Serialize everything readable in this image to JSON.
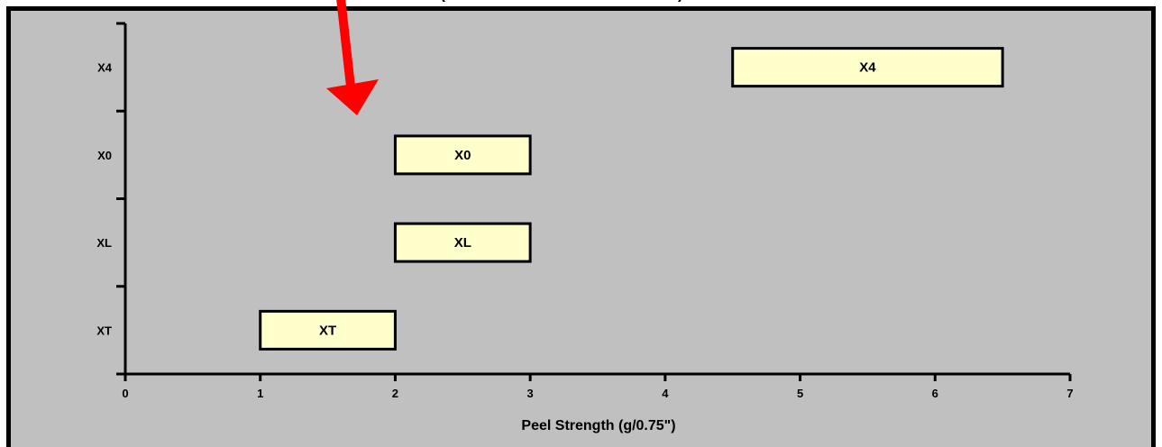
{
  "chart_data": {
    "type": "bar",
    "subtype": "floating-range-horizontal",
    "title": "",
    "xlabel": "Peel Strength (g/0.75\")",
    "ylabel": "",
    "xlim": [
      0,
      7
    ],
    "x_ticks": [
      "0",
      "1",
      "2",
      "3",
      "4",
      "5",
      "6",
      "7"
    ],
    "categories": [
      "XT",
      "XL",
      "X0",
      "X4"
    ],
    "series": [
      {
        "ranges": [
          {
            "category": "XT",
            "low": 1,
            "high": 2,
            "label": "XT"
          },
          {
            "category": "XL",
            "low": 2,
            "high": 3,
            "label": "XL"
          },
          {
            "category": "X0",
            "low": 2,
            "high": 3,
            "label": "X0"
          },
          {
            "category": "X4",
            "low": 4.5,
            "high": 6.5,
            "label": "X4"
          }
        ]
      }
    ],
    "grid": false,
    "colors": {
      "plot_background": "#c0c0c0",
      "bar_fill": "#ffffcc",
      "bar_border": "#000000",
      "arrow": "#ff0000",
      "frame": "#000000"
    },
    "annotations": [
      {
        "type": "arrow",
        "icon": "red-arrow-icon",
        "points_at_x": 1.7
      }
    ]
  }
}
